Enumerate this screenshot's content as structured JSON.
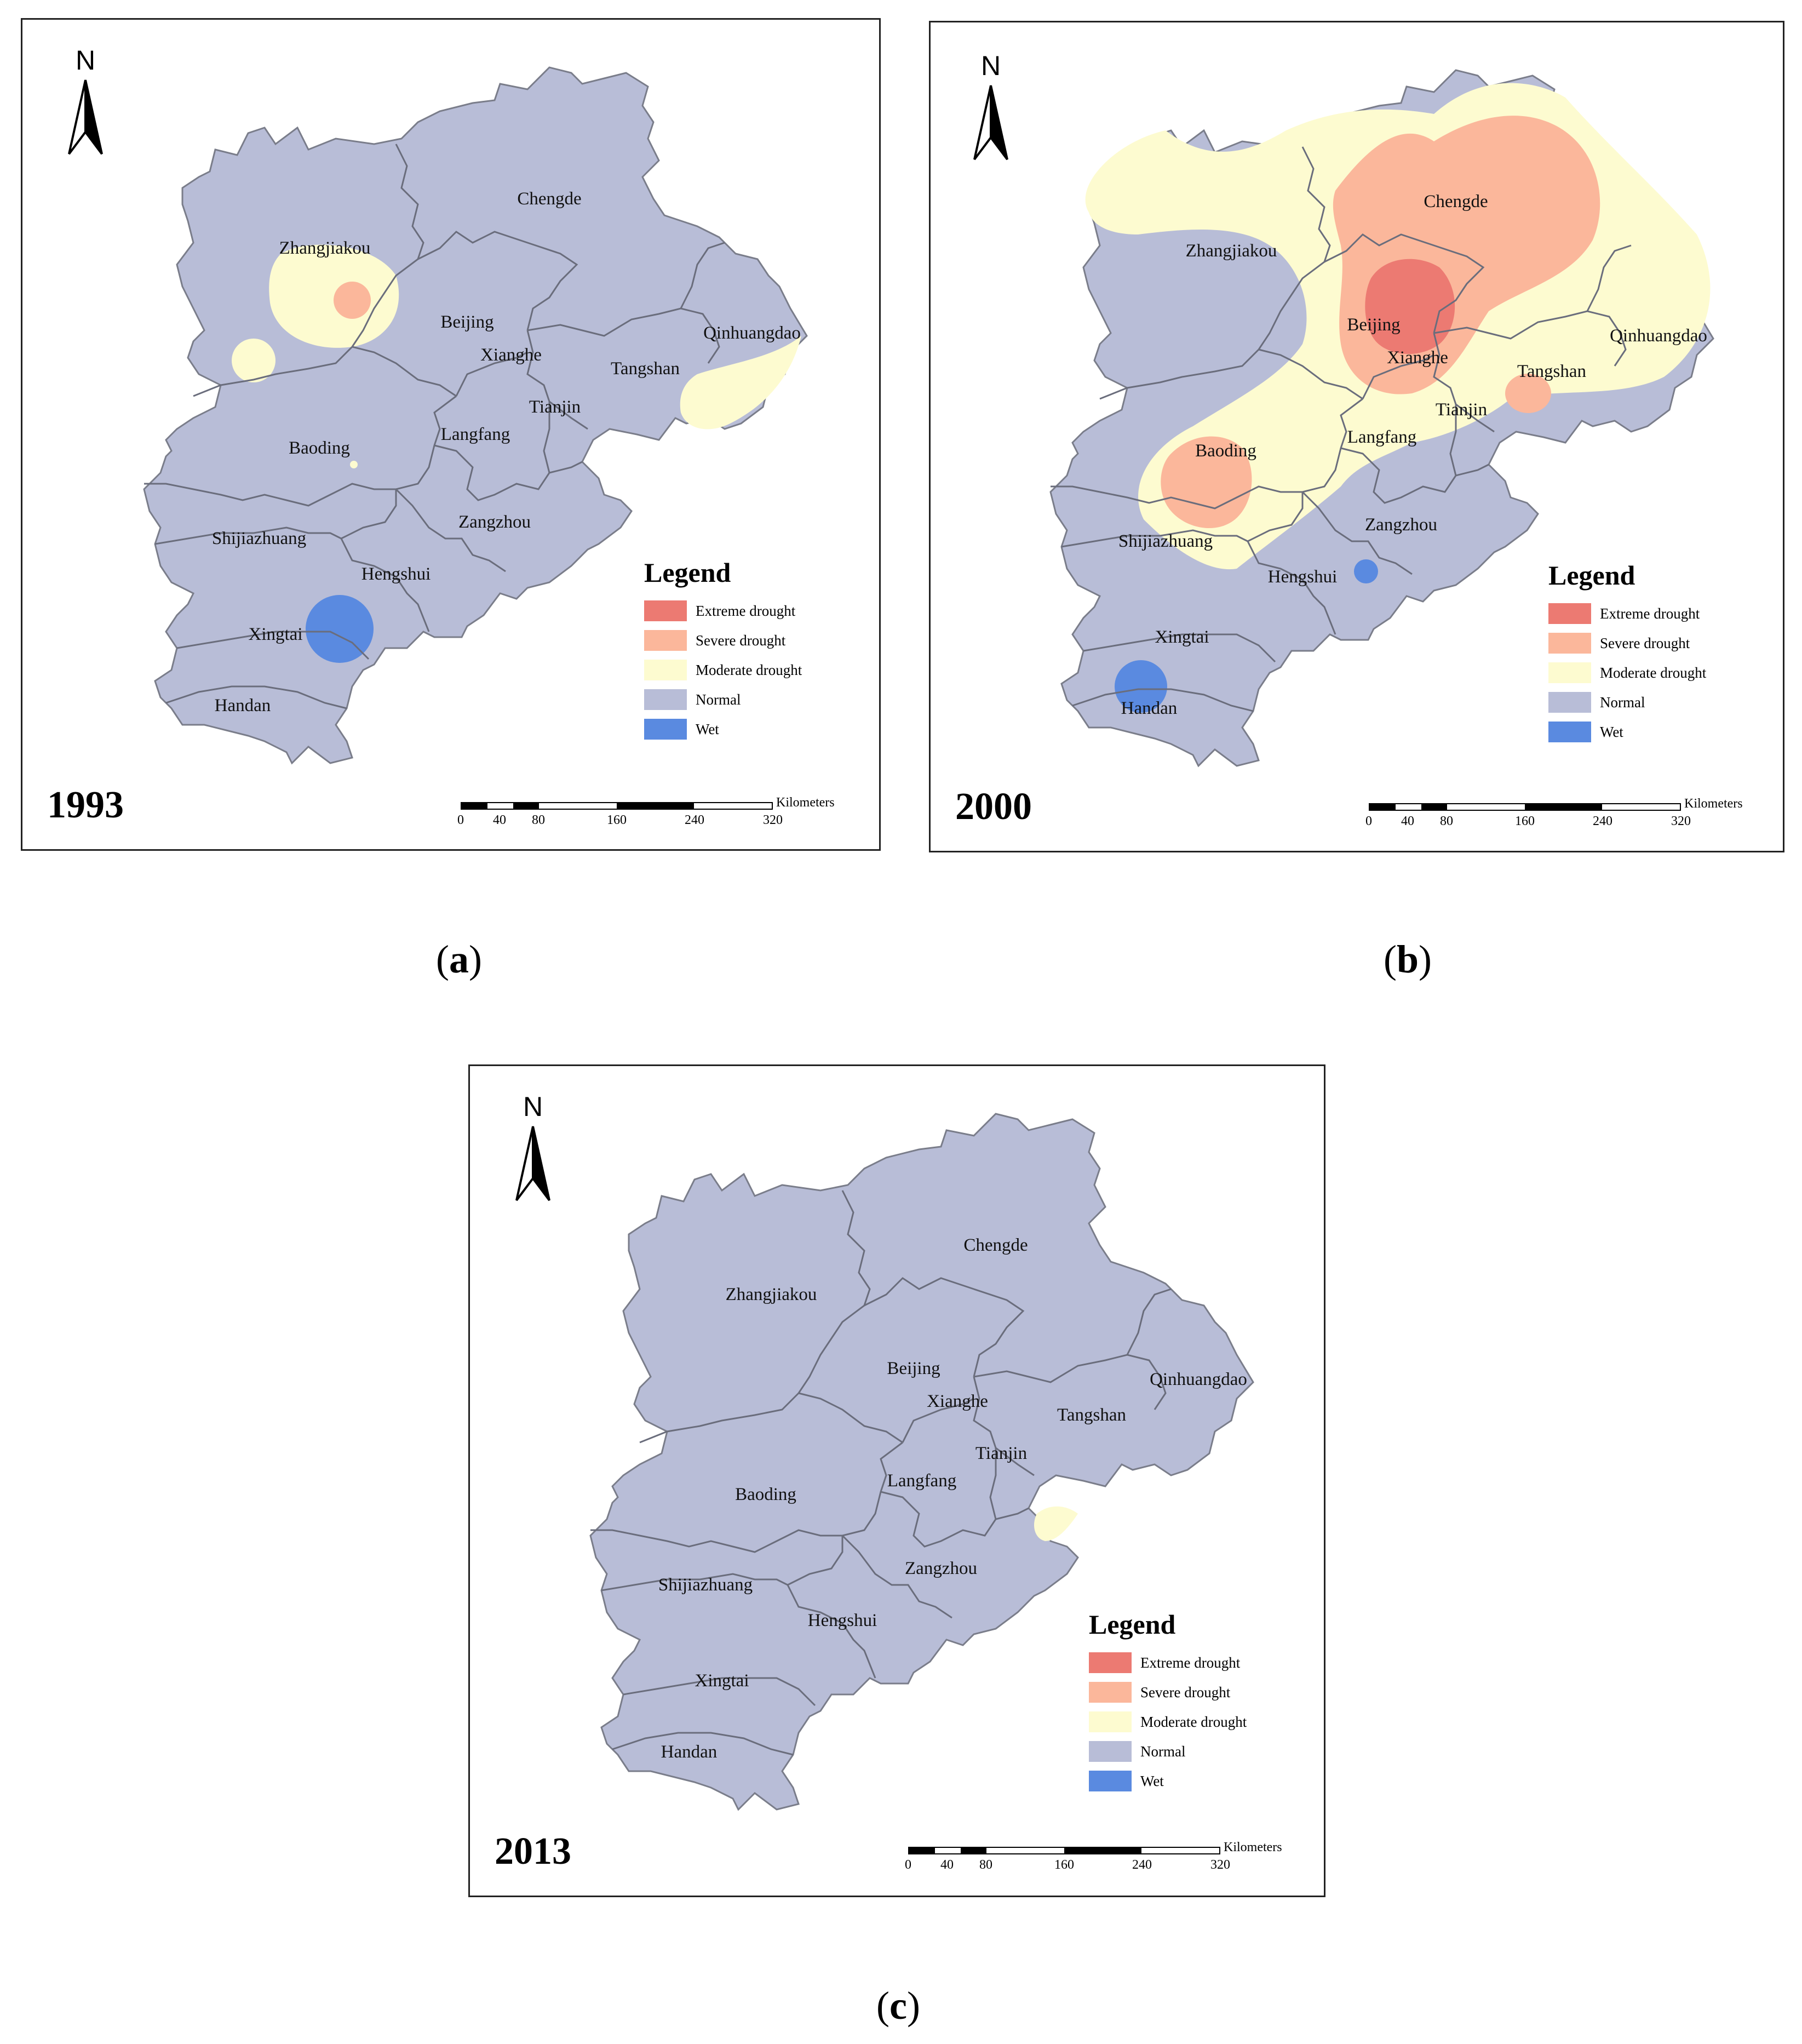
{
  "legend": {
    "title": "Legend",
    "items": [
      {
        "label": "Extreme drought",
        "color": "#ec7a72"
      },
      {
        "label": "Severe drought",
        "color": "#fbb79b"
      },
      {
        "label": "Moderate drought",
        "color": "#fdfbd0"
      },
      {
        "label": "Normal",
        "color": "#b8bdd7"
      },
      {
        "label": "Wet",
        "color": "#5a8ae0"
      }
    ]
  },
  "north_label": "N",
  "scale": {
    "ticks": [
      "0",
      "40",
      "80",
      "160",
      "240",
      "320"
    ],
    "units": "Kilometers"
  },
  "cities": [
    "Chengde",
    "Zhangjiakou",
    "Beijing",
    "Xianghe",
    "Qinhuangdao",
    "Tangshan",
    "Tianjin",
    "Langfang",
    "Baoding",
    "Zangzhou",
    "Shijiazhuang",
    "Hengshui",
    "Xingtai",
    "Handan"
  ],
  "panels": [
    {
      "year": "1993",
      "caption": "a"
    },
    {
      "year": "2000",
      "caption": "b"
    },
    {
      "year": "2013",
      "caption": "c"
    }
  ]
}
